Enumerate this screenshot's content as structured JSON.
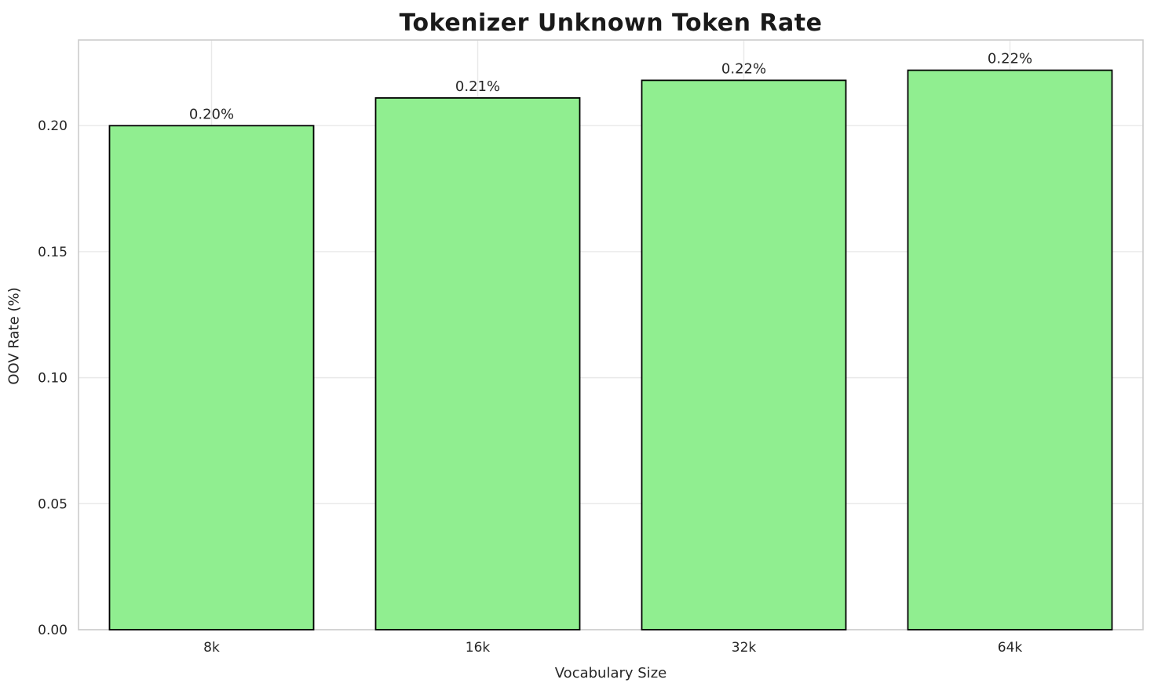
{
  "chart_data": {
    "type": "bar",
    "title": "Tokenizer Unknown Token Rate",
    "xlabel": "Vocabulary Size",
    "ylabel": "OOV Rate (%)",
    "categories": [
      "8k",
      "16k",
      "32k",
      "64k"
    ],
    "values": [
      0.2,
      0.211,
      0.218,
      0.222
    ],
    "bar_labels": [
      "0.20%",
      "0.21%",
      "0.22%",
      "0.22%"
    ],
    "yticks": [
      0.0,
      0.05,
      0.1,
      0.15,
      0.2
    ],
    "ytick_labels": [
      "0.00",
      "0.05",
      "0.10",
      "0.15",
      "0.20"
    ],
    "ylim": [
      0,
      0.234
    ],
    "grid": true,
    "legend": "none",
    "bar_color": "#90ee90",
    "bar_edge_color": "#000000",
    "grid_color": "#e9e9e9",
    "spine_color": "#cccccc",
    "text_color": "#262626",
    "title_color": "#1a1a1a"
  }
}
